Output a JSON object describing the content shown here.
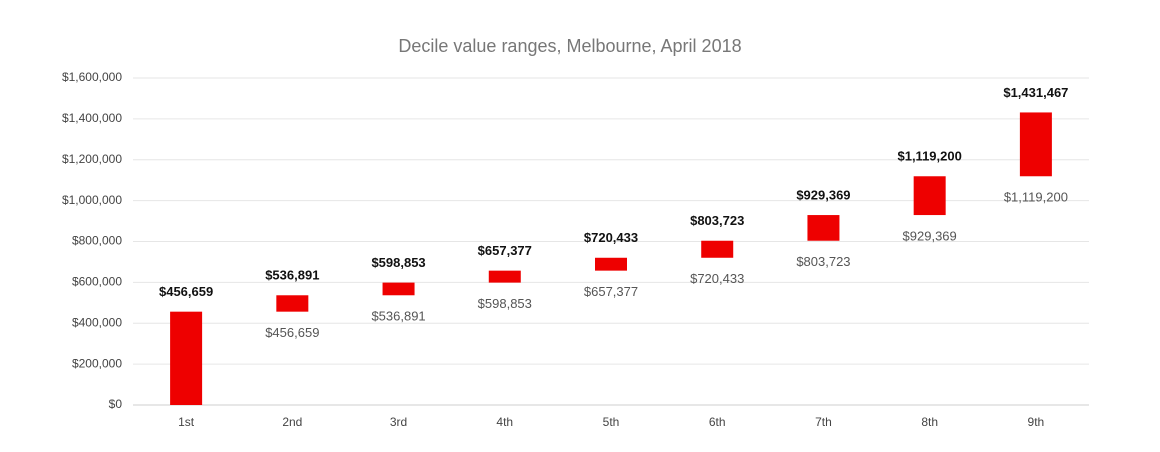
{
  "chart_data": {
    "type": "range-bar",
    "title": "Decile value ranges, Melbourne, April 2018",
    "categories": [
      "1st",
      "2nd",
      "3rd",
      "4th",
      "5th",
      "6th",
      "7th",
      "8th",
      "9th"
    ],
    "color": "#ee0000",
    "low": {
      "values": [
        0,
        456659,
        536891,
        598853,
        657377,
        720433,
        803723,
        929369,
        1119200
      ],
      "value_labels": [
        null,
        "$456,659",
        "$536,891",
        "$598,853",
        "$657,377",
        "$720,433",
        "$803,723",
        "$929,369",
        "$1,119,200"
      ]
    },
    "high": {
      "values": [
        456659,
        536891,
        598853,
        657377,
        720433,
        803723,
        929369,
        1119200,
        1431467
      ],
      "value_labels": [
        "$456,659",
        "$536,891",
        "$598,853",
        "$657,377",
        "$720,433",
        "$803,723",
        "$929,369",
        "$1,119,200",
        "$1,431,467"
      ]
    },
    "ylim": [
      0,
      1600000
    ],
    "yticks": [
      {
        "value": 0,
        "label": "$0"
      },
      {
        "value": 200000,
        "label": "$200,000"
      },
      {
        "value": 400000,
        "label": "$400,000"
      },
      {
        "value": 600000,
        "label": "$600,000"
      },
      {
        "value": 800000,
        "label": "$800,000"
      },
      {
        "value": 1000000,
        "label": "$1,000,000"
      },
      {
        "value": 1200000,
        "label": "$1,200,000"
      },
      {
        "value": 1400000,
        "label": "$1,400,000"
      },
      {
        "value": 1600000,
        "label": "$1,600,000"
      }
    ],
    "grid": true
  }
}
